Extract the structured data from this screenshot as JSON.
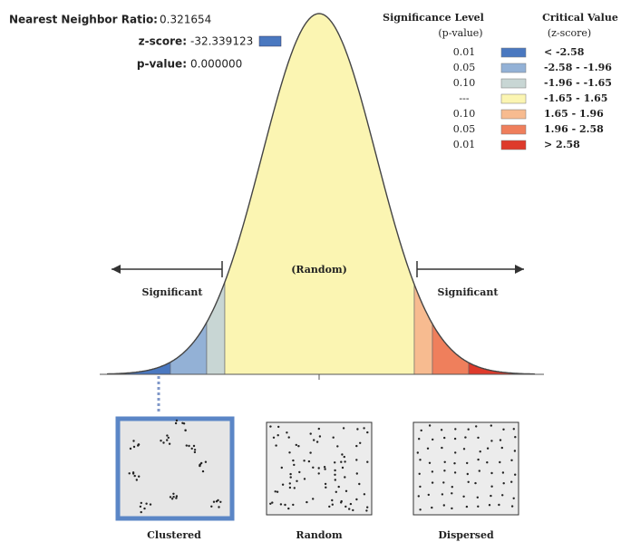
{
  "header": {
    "ratio_label": "Nearest Neighbor Ratio:",
    "ratio": "0.321654",
    "z_label": "z-score:",
    "z": "-32.339123",
    "p_label": "p-value:",
    "p": "0.000000"
  },
  "legend": {
    "p_title": "Significance Level",
    "p_subtitle": "(p-value)",
    "z_title": "Critical Value",
    "z_subtitle": "(z-score)",
    "rows": [
      {
        "p": "0.01",
        "z": "< -2.58",
        "color": "#4a78c0"
      },
      {
        "p": "0.05",
        "z": "-2.58 - -1.96",
        "color": "#93b1d6"
      },
      {
        "p": "0.10",
        "z": "-1.96 - -1.65",
        "color": "#c8d6d4"
      },
      {
        "p": "---",
        "z": "-1.65 - 1.65",
        "color": "#fbf5b2"
      },
      {
        "p": "0.10",
        "z": "1.65 - 1.96",
        "color": "#f7bb90"
      },
      {
        "p": "0.05",
        "z": "1.96 - 2.58",
        "color": "#ef7f5c"
      },
      {
        "p": "0.01",
        "z": "> 2.58",
        "color": "#de3a2b"
      }
    ]
  },
  "curve": {
    "center_label": "(Random)",
    "left_label": "Significant",
    "right_label": "Significant"
  },
  "patterns": [
    "Clustered",
    "Random",
    "Dispersed"
  ]
}
